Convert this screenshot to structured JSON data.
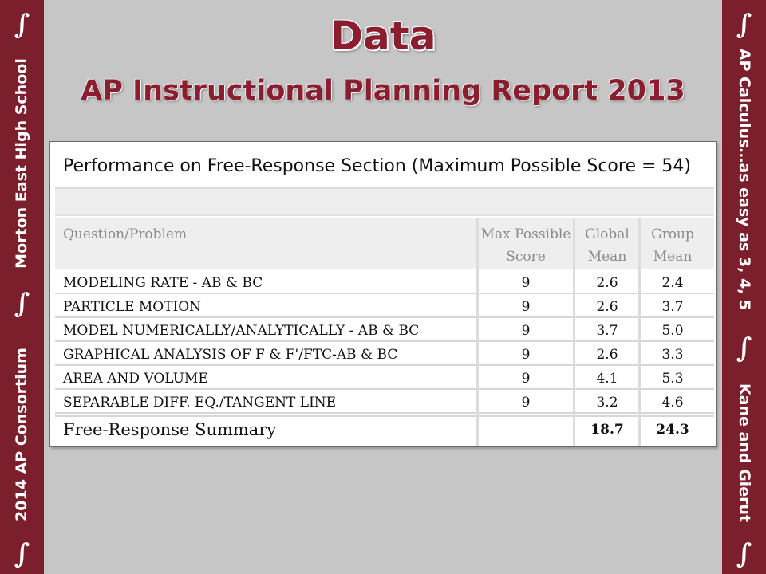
{
  "header": {
    "title": "Data",
    "subtitle": "AP Instructional Planning Report 2013"
  },
  "left_sidebar": {
    "label_top": "Morton East High School",
    "label_bottom": "2014 AP Consortium",
    "symbol": "∫"
  },
  "right_sidebar": {
    "label_top": "AP Calculus…as easy as 3, 4, 5",
    "label_bottom": "Kane and Gierut",
    "symbol": "∫"
  },
  "report": {
    "title": "Performance on Free-Response Section  (Maximum Possible Score = 54)",
    "columns": {
      "question": "Question/Problem",
      "max_line1": "Max Possible",
      "max_line2": "Score",
      "global_line1": "Global",
      "global_line2": "Mean",
      "group_line1": "Group",
      "group_line2": "Mean"
    },
    "rows": [
      {
        "question": "MODELING RATE - AB & BC",
        "max": "9",
        "global": "2.6",
        "group": "2.4"
      },
      {
        "question": "PARTICLE MOTION",
        "max": "9",
        "global": "2.6",
        "group": "3.7"
      },
      {
        "question": "MODEL NUMERICALLY/ANALYTICALLY - AB & BC",
        "max": "9",
        "global": "3.7",
        "group": "5.0"
      },
      {
        "question": "GRAPHICAL ANALYSIS OF F & F'/FTC-AB & BC",
        "max": "9",
        "global": "2.6",
        "group": "3.3"
      },
      {
        "question": "AREA AND VOLUME",
        "max": "9",
        "global": "4.1",
        "group": "5.3"
      },
      {
        "question": "SEPARABLE DIFF. EQ./TANGENT LINE",
        "max": "9",
        "global": "3.2",
        "group": "4.6"
      }
    ],
    "summary": {
      "label": "Free-Response Summary",
      "max": "",
      "global": "18.7",
      "group": "24.3"
    }
  },
  "colors": {
    "accent": "#7a1f2b",
    "title": "#8b1e2e",
    "background": "#c6c6c6"
  }
}
